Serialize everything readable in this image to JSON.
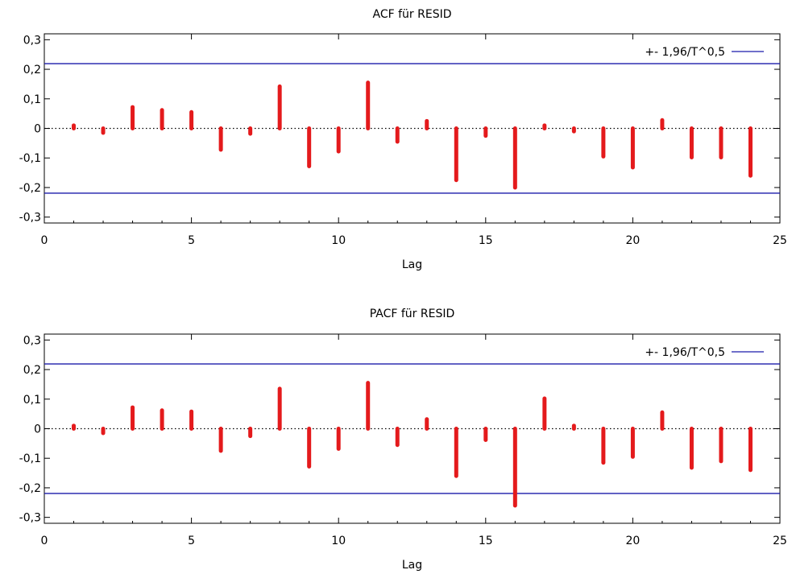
{
  "chart_data": [
    {
      "type": "bar",
      "title": "ACF für RESID",
      "xlabel": "Lag",
      "ylabel": "",
      "xlim": [
        0,
        25
      ],
      "ylim": [
        -0.32,
        0.32
      ],
      "x_ticks": [
        0,
        5,
        10,
        15,
        20,
        25
      ],
      "x_tick_labels": [
        "0",
        "5",
        "10",
        "15",
        "20",
        "25"
      ],
      "y_ticks": [
        -0.3,
        -0.2,
        -0.1,
        0,
        0.1,
        0.2,
        0.3
      ],
      "y_tick_labels": [
        "-0,3",
        "-0,2",
        "-0,1",
        "0",
        "0,1",
        "0,2",
        "0,3"
      ],
      "legend_position": "top-right",
      "legend_label": "+- 1,96/T^0,5",
      "confidence_bound": 0.219,
      "bar_color": "#e41a1c",
      "bound_color": "#1a1aaa",
      "lags": [
        1,
        2,
        3,
        4,
        5,
        6,
        7,
        8,
        9,
        10,
        11,
        12,
        13,
        14,
        15,
        16,
        17,
        18,
        19,
        20,
        21,
        22,
        23,
        24
      ],
      "values": [
        0.01,
        -0.015,
        0.072,
        0.062,
        0.055,
        -0.072,
        -0.018,
        0.142,
        -0.128,
        -0.078,
        0.155,
        -0.045,
        0.025,
        -0.175,
        -0.025,
        -0.2,
        0.01,
        -0.01,
        -0.095,
        -0.132,
        0.028,
        -0.098,
        -0.098,
        -0.16
      ]
    },
    {
      "type": "bar",
      "title": "PACF für RESID",
      "xlabel": "Lag",
      "ylabel": "",
      "xlim": [
        0,
        25
      ],
      "ylim": [
        -0.32,
        0.32
      ],
      "x_ticks": [
        0,
        5,
        10,
        15,
        20,
        25
      ],
      "x_tick_labels": [
        "0",
        "5",
        "10",
        "15",
        "20",
        "25"
      ],
      "y_ticks": [
        -0.3,
        -0.2,
        -0.1,
        0,
        0.1,
        0.2,
        0.3
      ],
      "y_tick_labels": [
        "-0,3",
        "-0,2",
        "-0,1",
        "0",
        "0,1",
        "0,2",
        "0,3"
      ],
      "legend_position": "top-right",
      "legend_label": "+- 1,96/T^0,5",
      "confidence_bound": 0.219,
      "bar_color": "#e41a1c",
      "bound_color": "#1a1aaa",
      "lags": [
        1,
        2,
        3,
        4,
        5,
        6,
        7,
        8,
        9,
        10,
        11,
        12,
        13,
        14,
        15,
        16,
        17,
        18,
        19,
        20,
        21,
        22,
        23,
        24
      ],
      "values": [
        0.01,
        -0.015,
        0.072,
        0.062,
        0.058,
        -0.075,
        -0.025,
        0.135,
        -0.128,
        -0.068,
        0.155,
        -0.055,
        0.032,
        -0.16,
        -0.038,
        -0.26,
        0.102,
        0.01,
        -0.115,
        -0.095,
        0.055,
        -0.132,
        -0.11,
        -0.14
      ]
    }
  ]
}
